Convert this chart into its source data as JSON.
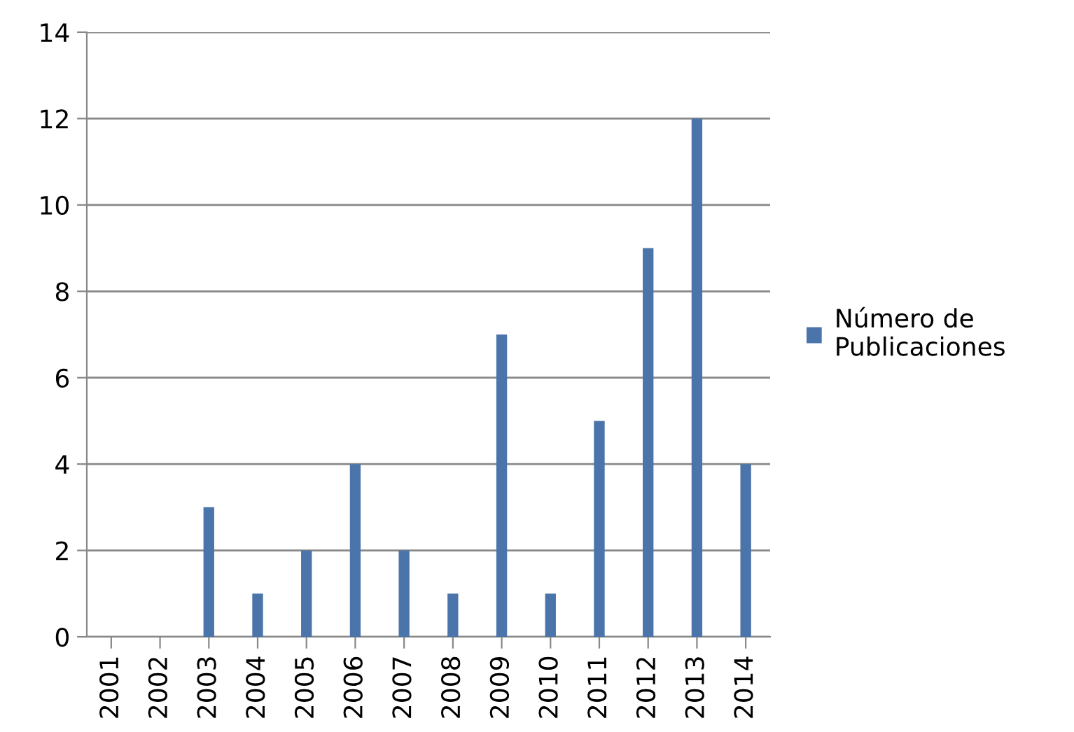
{
  "chart_data": {
    "type": "bar",
    "categories": [
      "2001",
      "2002",
      "2003",
      "2004",
      "2005",
      "2006",
      "2007",
      "2008",
      "2009",
      "2010",
      "2011",
      "2012",
      "2013",
      "2014"
    ],
    "series": [
      {
        "name": "Número de Publicaciones",
        "color": "#4a74aa",
        "values": [
          0,
          0,
          3,
          1,
          2,
          4,
          2,
          1,
          7,
          1,
          5,
          9,
          12,
          4
        ]
      }
    ],
    "ylim": [
      0,
      14
    ],
    "yticks": [
      0,
      2,
      4,
      6,
      8,
      10,
      12,
      14
    ],
    "grid": "y",
    "legend": "right"
  }
}
